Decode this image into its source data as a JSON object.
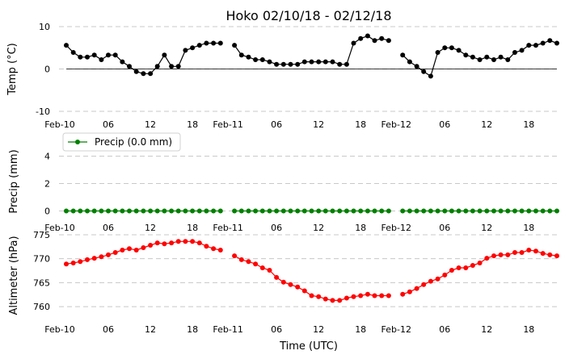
{
  "title": "Hoko 02/10/18 - 02/12/18",
  "xlabel": "Time (UTC)",
  "x_tick_labels": [
    "Feb-10",
    "06",
    "12",
    "18",
    "Feb-11",
    "06",
    "12",
    "18",
    "Feb-12",
    "06",
    "12",
    "18"
  ],
  "colors": {
    "temp": "#000000",
    "precip": "#008000",
    "altimeter": "#ff0000"
  },
  "chart_data": [
    {
      "type": "line",
      "ylabel": "Temp (°C)",
      "ylim": [
        -10,
        10
      ],
      "yticks": [
        -10,
        0,
        10
      ],
      "zero_line": true,
      "grid": "horizontal dashed",
      "x_hours": [
        0,
        1,
        2,
        3,
        4,
        5,
        6,
        7,
        8,
        9,
        10,
        11,
        12,
        13,
        14,
        15,
        16,
        17,
        18,
        19,
        20,
        21,
        22,
        23,
        24,
        25,
        26,
        27,
        28,
        29,
        30,
        31,
        32,
        33,
        34,
        35,
        36,
        37,
        38,
        39,
        40,
        41,
        42,
        43,
        44,
        45,
        46,
        47,
        48,
        49,
        50,
        51,
        52,
        53,
        54,
        55,
        56,
        57,
        58,
        59,
        60,
        61,
        62,
        63,
        64,
        65,
        66,
        67,
        68,
        69,
        70
      ],
      "values": [
        5.6,
        3.9,
        2.8,
        2.8,
        3.3,
        2.2,
        3.3,
        3.3,
        1.7,
        0.6,
        -0.6,
        -1.1,
        -1.1,
        0.6,
        3.3,
        0.6,
        0.6,
        4.4,
        5.0,
        5.6,
        6.1,
        6.1,
        6.1,
        null,
        5.6,
        3.3,
        2.8,
        2.2,
        2.2,
        1.7,
        1.1,
        1.1,
        1.1,
        1.1,
        1.7,
        1.7,
        1.7,
        1.7,
        1.7,
        1.1,
        1.1,
        6.1,
        7.2,
        7.8,
        6.7,
        7.2,
        6.7,
        null,
        3.3,
        1.7,
        0.6,
        -0.6,
        -1.7,
        3.9,
        5.0,
        5.0,
        4.4,
        3.3,
        2.8,
        2.2,
        2.8,
        2.2,
        2.8,
        2.2,
        3.9,
        4.4,
        5.6,
        5.6,
        6.1,
        6.7,
        6.1
      ]
    },
    {
      "type": "line",
      "ylabel": "Precip (mm)",
      "ylim": [
        -0.5,
        4.8
      ],
      "yticks": [
        0,
        2,
        4
      ],
      "grid": "horizontal dashed",
      "legend": "Precip (0.0 mm)",
      "legend_position": "top-left",
      "x_hours": [
        0,
        1,
        2,
        3,
        4,
        5,
        6,
        7,
        8,
        9,
        10,
        11,
        12,
        13,
        14,
        15,
        16,
        17,
        18,
        19,
        20,
        21,
        22,
        23,
        24,
        25,
        26,
        27,
        28,
        29,
        30,
        31,
        32,
        33,
        34,
        35,
        36,
        37,
        38,
        39,
        40,
        41,
        42,
        43,
        44,
        45,
        46,
        47,
        48,
        49,
        50,
        51,
        52,
        53,
        54,
        55,
        56,
        57,
        58,
        59,
        60,
        61,
        62,
        63,
        64,
        65,
        66,
        67,
        68,
        69,
        70
      ],
      "values": [
        0,
        0,
        0,
        0,
        0,
        0,
        0,
        0,
        0,
        0,
        0,
        0,
        0,
        0,
        0,
        0,
        0,
        0,
        0,
        0,
        0,
        0,
        0,
        null,
        0,
        0,
        0,
        0,
        0,
        0,
        0,
        0,
        0,
        0,
        0,
        0,
        0,
        0,
        0,
        0,
        0,
        0,
        0,
        0,
        0,
        0,
        0,
        null,
        0,
        0,
        0,
        0,
        0,
        0,
        0,
        0,
        0,
        0,
        0,
        0,
        0,
        0,
        0,
        0,
        0,
        0,
        0,
        0,
        0,
        0,
        0
      ]
    },
    {
      "type": "line",
      "ylabel": "Altimeter (hPa)",
      "ylim": [
        757,
        776
      ],
      "yticks": [
        760,
        765,
        770,
        775
      ],
      "grid": "horizontal dashed",
      "x_hours": [
        0,
        1,
        2,
        3,
        4,
        5,
        6,
        7,
        8,
        9,
        10,
        11,
        12,
        13,
        14,
        15,
        16,
        17,
        18,
        19,
        20,
        21,
        22,
        23,
        24,
        25,
        26,
        27,
        28,
        29,
        30,
        31,
        32,
        33,
        34,
        35,
        36,
        37,
        38,
        39,
        40,
        41,
        42,
        43,
        44,
        45,
        46,
        47,
        48,
        49,
        50,
        51,
        52,
        53,
        54,
        55,
        56,
        57,
        58,
        59,
        60,
        61,
        62,
        63,
        64,
        65,
        66,
        67,
        68,
        69,
        70
      ],
      "values": [
        768.9,
        769.1,
        769.4,
        769.8,
        770.1,
        770.4,
        770.8,
        771.3,
        771.8,
        772.1,
        771.8,
        772.3,
        772.8,
        773.3,
        773.1,
        773.3,
        773.6,
        773.6,
        773.6,
        773.3,
        772.6,
        772.1,
        771.8,
        null,
        770.6,
        769.8,
        769.4,
        768.9,
        768.1,
        767.6,
        766.1,
        765.1,
        764.6,
        764.1,
        763.3,
        762.3,
        762.1,
        761.6,
        761.3,
        761.3,
        761.8,
        762.1,
        762.3,
        762.6,
        762.3,
        762.3,
        762.3,
        null,
        762.6,
        763.1,
        763.8,
        764.6,
        765.3,
        765.8,
        766.6,
        767.6,
        768.1,
        768.1,
        768.6,
        769.1,
        770.1,
        770.6,
        770.8,
        770.8,
        771.3,
        771.3,
        771.8,
        771.6,
        771.1,
        770.8,
        770.6
      ]
    }
  ]
}
